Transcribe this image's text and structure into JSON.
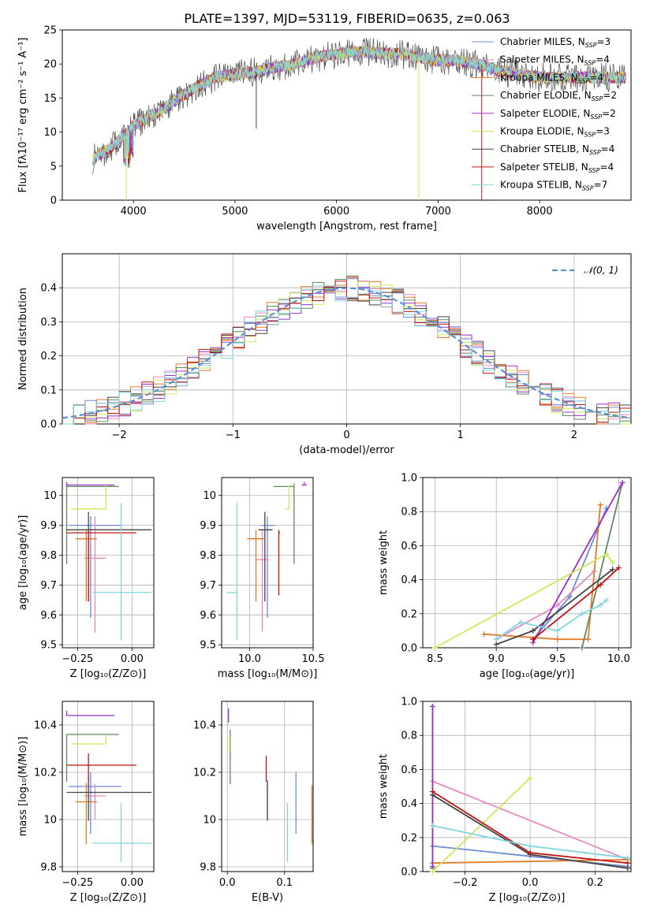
{
  "chart_data": [
    {
      "id": "spectrum",
      "type": "line",
      "title": "PLATE=1397, MJD=53119, FIBERID=0635, z=0.063",
      "xlabel": "wavelength [Angstrom, rest frame]",
      "ylabel": "Flux [fλ10⁻¹⁷ erg cm⁻² s⁻¹ A⁻¹]",
      "xlim": [
        3300,
        8900
      ],
      "ylim": [
        0,
        25
      ],
      "xticks": [
        4000,
        5000,
        6000,
        7000,
        8000
      ],
      "yticks": [
        0,
        5,
        10,
        15,
        20,
        25
      ],
      "grid": false,
      "legend_position": "lower-right",
      "continuum": {
        "x": [
          3600,
          3800,
          4000,
          4200,
          4400,
          4600,
          4800,
          5000,
          5200,
          5400,
          5600,
          5800,
          6000,
          6200,
          6400,
          6600,
          6800,
          7000,
          7200,
          7400,
          7600,
          7800,
          8000,
          8200,
          8400,
          8600,
          8800
        ],
        "y": [
          6,
          8,
          11,
          12.5,
          14.5,
          16.5,
          18,
          18.5,
          18.8,
          19.5,
          20,
          21,
          21.5,
          21.8,
          21.6,
          21.5,
          21,
          20.5,
          20.5,
          20,
          19,
          18.5,
          18,
          18,
          18,
          18,
          18
        ]
      },
      "series": [
        {
          "name": "Chabrier MILES, N_SSP=3",
          "color": "#6b8cd6"
        },
        {
          "name": "Salpeter MILES, N_SSP=4",
          "color": "#e68ac3"
        },
        {
          "name": "Kroupa MILES, N_SSP=4",
          "color": "#e07b28"
        },
        {
          "name": "Chabrier ELODIE, N_SSP=2",
          "color": "#5e8a5e"
        },
        {
          "name": "Salpeter ELODIE, N_SSP=2",
          "color": "#9b30c8"
        },
        {
          "name": "Kroupa ELODIE, N_SSP=3",
          "color": "#cde85a"
        },
        {
          "name": "Chabrier STELIB, N_SSP=4",
          "color": "#444444"
        },
        {
          "name": "Salpeter STELIB, N_SSP=4",
          "color": "#c01414"
        },
        {
          "name": "Kroupa STELIB, N_SSP=7",
          "color": "#7fd6de"
        }
      ],
      "legend": [
        {
          "main": "Chabrier MILES, N",
          "sub": "SSP",
          "tail": "=3"
        },
        {
          "main": "Salpeter MILES, N",
          "sub": "SSP",
          "tail": "=4"
        },
        {
          "main": "Kroupa MILES, N",
          "sub": "SSP",
          "tail": "=4"
        },
        {
          "main": "Chabrier ELODIE, N",
          "sub": "SSP",
          "tail": "=2"
        },
        {
          "main": "Salpeter ELODIE, N",
          "sub": "SSP",
          "tail": "=2"
        },
        {
          "main": "Kroupa ELODIE, N",
          "sub": "SSP",
          "tail": "=3"
        },
        {
          "main": "Chabrier STELIB, N",
          "sub": "SSP",
          "tail": "=4"
        },
        {
          "main": "Salpeter STELIB, N",
          "sub": "SSP",
          "tail": "=4"
        },
        {
          "main": "Kroupa STELIB, N",
          "sub": "SSP",
          "tail": "=7"
        }
      ]
    },
    {
      "id": "residuals",
      "type": "step",
      "xlabel": "(data-model)/error",
      "ylabel": "Normed distribution",
      "xlim": [
        -2.5,
        2.5
      ],
      "ylim": [
        0,
        0.5
      ],
      "xticks": [
        -2,
        -1,
        0,
        1,
        2
      ],
      "xticklabels": [
        "−2",
        "−1",
        "0",
        "1",
        "2"
      ],
      "yticks": [
        0.0,
        0.1,
        0.2,
        0.3,
        0.4
      ],
      "grid": true,
      "legend_position": "upper-right",
      "legend_label": "𝒩(0, 1)",
      "gaussian_color": "#5b8fd8",
      "bin_width": 0.1
    },
    {
      "id": "age-vs-Z",
      "type": "errorbar",
      "xlabel": "Z [log₁₀(Z/Z⊙)]",
      "ylabel": "age  [log₁₀(age/yr)]",
      "xlim": [
        -0.32,
        0.1
      ],
      "ylim": [
        9.49,
        10.06
      ],
      "xticks": [
        -0.25,
        0.0
      ],
      "xticklabels": [
        "−0.25",
        "0.00"
      ],
      "yticks": [
        9.5,
        9.6,
        9.7,
        9.8,
        9.9,
        10.0
      ],
      "grid": true,
      "points": [
        {
          "x": -0.19,
          "y": 9.9,
          "xerr": [
            0.1,
            0.14
          ],
          "yerr": [
            0.31,
            0.03
          ],
          "color": "#6b8cd6"
        },
        {
          "x": -0.17,
          "y": 9.79,
          "xerr": [
            0.05,
            0.05
          ],
          "yerr": [
            0.25,
            0.14
          ],
          "color": "#e68ac3"
        },
        {
          "x": -0.21,
          "y": 9.855,
          "xerr": [
            0.05,
            0.05
          ],
          "yerr": [
            0.21,
            0.03
          ],
          "color": "#e07b28"
        },
        {
          "x": -0.3,
          "y": 10.03,
          "xerr": [
            0.0,
            0.24
          ],
          "yerr": [
            0.26,
            0.01
          ],
          "color": "#5e8a5e"
        },
        {
          "x": -0.3,
          "y": 10.035,
          "xerr": [
            0.0,
            0.22
          ],
          "yerr": [
            0.0,
            0.01
          ],
          "color": "#9b30c8"
        },
        {
          "x": -0.12,
          "y": 9.955,
          "xerr": [
            0.16,
            0.0
          ],
          "yerr": [
            0.0,
            0.08
          ],
          "color": "#cde85a"
        },
        {
          "x": -0.2,
          "y": 9.885,
          "xerr": [
            0.1,
            0.29
          ],
          "yerr": [
            0.24,
            0.06
          ],
          "color": "#444444"
        },
        {
          "x": -0.2,
          "y": 9.875,
          "xerr": [
            0.1,
            0.22
          ],
          "yerr": [
            0.23,
            0.01
          ],
          "color": "#c01414"
        },
        {
          "x": -0.05,
          "y": 9.675,
          "xerr": [
            0.13,
            0.14
          ],
          "yerr": [
            0.16,
            0.3
          ],
          "color": "#7fd6de"
        }
      ]
    },
    {
      "id": "age-vs-mass",
      "type": "errorbar",
      "xlabel": "mass [log₁₀(M/M⊙)]",
      "ylabel": "",
      "xlim": [
        9.78,
        10.5
      ],
      "ylim": [
        9.49,
        10.06
      ],
      "xticks": [
        10.0,
        10.5
      ],
      "xticklabels": [
        "10.0",
        "10.5"
      ],
      "yticks": [
        9.5,
        9.6,
        9.7,
        9.8,
        9.9,
        10.0
      ],
      "grid": true,
      "points": [
        {
          "x": 10.14,
          "y": 9.9,
          "xerr": [
            0.05,
            0.06
          ],
          "yerr": [
            0.31,
            0.03
          ],
          "color": "#6b8cd6"
        },
        {
          "x": 10.1,
          "y": 9.785,
          "xerr": [
            0.05,
            0.05
          ],
          "yerr": [
            0.24,
            0.1
          ],
          "color": "#e68ac3"
        },
        {
          "x": 10.05,
          "y": 9.855,
          "xerr": [
            0.07,
            0.07
          ],
          "yerr": [
            0.21,
            0.03
          ],
          "color": "#e07b28"
        },
        {
          "x": 10.35,
          "y": 10.03,
          "xerr": [
            0.16,
            0.0
          ],
          "yerr": [
            0.26,
            0.01
          ],
          "color": "#5e8a5e"
        },
        {
          "x": 10.43,
          "y": 10.035,
          "xerr": [
            0.02,
            0.02
          ],
          "yerr": [
            0.0,
            0.01
          ],
          "color": "#9b30c8"
        },
        {
          "x": 10.31,
          "y": 9.955,
          "xerr": [
            0.03,
            0.0
          ],
          "yerr": [
            0.0,
            0.08
          ],
          "color": "#cde85a"
        },
        {
          "x": 10.12,
          "y": 9.885,
          "xerr": [
            0.05,
            0.06
          ],
          "yerr": [
            0.24,
            0.06
          ],
          "color": "#444444"
        },
        {
          "x": 10.23,
          "y": 9.875,
          "xerr": [
            0.0,
            0.01
          ],
          "yerr": [
            0.21,
            0.01
          ],
          "color": "#c01414"
        },
        {
          "x": 9.9,
          "y": 9.675,
          "xerr": [
            0.08,
            0.0
          ],
          "yerr": [
            0.16,
            0.3
          ],
          "color": "#7fd6de"
        }
      ]
    },
    {
      "id": "mass-weight-vs-age",
      "type": "line",
      "xlabel": "age  [log₁₀(age/yr)]",
      "ylabel": "mass weight",
      "xlim": [
        8.4,
        10.1
      ],
      "ylim": [
        0,
        1
      ],
      "xticks": [
        8.5,
        9.0,
        9.5,
        10.0
      ],
      "xticklabels": [
        "8.5",
        "9.0",
        "9.5",
        "10.0"
      ],
      "yticks": [
        0.0,
        0.2,
        0.4,
        0.6,
        0.8,
        1.0
      ],
      "grid": true,
      "series": [
        {
          "color": "#6b8cd6",
          "x": [
            9.3,
            9.6,
            9.9
          ],
          "y": [
            0.05,
            0.3,
            0.82
          ]
        },
        {
          "color": "#e68ac3",
          "x": [
            9.0,
            9.5,
            9.8
          ],
          "y": [
            0.05,
            0.25,
            0.45
          ]
        },
        {
          "color": "#e07b28",
          "x": [
            8.9,
            9.5,
            9.75,
            9.85
          ],
          "y": [
            0.08,
            0.05,
            0.05,
            0.84
          ]
        },
        {
          "color": "#5e8a5e",
          "x": [
            9.7,
            10.03
          ],
          "y": [
            0.0,
            0.97
          ]
        },
        {
          "color": "#9b30c8",
          "x": [
            9.3,
            10.03
          ],
          "y": [
            0.03,
            0.97
          ]
        },
        {
          "color": "#cde85a",
          "x": [
            8.5,
            9.9,
            9.95
          ],
          "y": [
            0.0,
            0.55,
            0.5
          ]
        },
        {
          "color": "#444444",
          "x": [
            9.0,
            9.3,
            9.95
          ],
          "y": [
            0.02,
            0.1,
            0.46
          ]
        },
        {
          "color": "#c01414",
          "x": [
            9.3,
            9.85,
            10.0
          ],
          "y": [
            0.05,
            0.37,
            0.47
          ]
        },
        {
          "color": "#7fd6de",
          "x": [
            9.0,
            9.2,
            9.5,
            9.7,
            9.85,
            9.9
          ],
          "y": [
            0.05,
            0.15,
            0.1,
            0.2,
            0.25,
            0.28
          ]
        }
      ]
    },
    {
      "id": "mass-vs-Z",
      "type": "errorbar",
      "xlabel": "Z [log₁₀(Z/Z⊙)]",
      "ylabel": "mass [log₁₀(M/M⊙)]",
      "xlim": [
        -0.32,
        0.1
      ],
      "ylim": [
        9.78,
        10.5
      ],
      "xticks": [
        -0.25,
        0.0
      ],
      "xticklabels": [
        "−0.25",
        "0.00"
      ],
      "yticks": [
        9.8,
        10.0,
        10.2,
        10.4
      ],
      "grid": true,
      "points": [
        {
          "x": -0.19,
          "y": 10.14,
          "xerr": [
            0.1,
            0.14
          ],
          "yerr": [
            0.2,
            0.06
          ],
          "color": "#6b8cd6"
        },
        {
          "x": -0.17,
          "y": 10.1,
          "xerr": [
            0.05,
            0.05
          ],
          "yerr": [
            0.1,
            0.05
          ],
          "color": "#e68ac3"
        },
        {
          "x": -0.21,
          "y": 10.075,
          "xerr": [
            0.05,
            0.05
          ],
          "yerr": [
            0.18,
            0.08
          ],
          "color": "#e07b28"
        },
        {
          "x": -0.3,
          "y": 10.36,
          "xerr": [
            0.0,
            0.24
          ],
          "yerr": [
            0.2,
            0.0
          ],
          "color": "#5e8a5e"
        },
        {
          "x": -0.3,
          "y": 10.44,
          "xerr": [
            0.0,
            0.22
          ],
          "yerr": [
            0.0,
            0.02
          ],
          "color": "#9b30c8"
        },
        {
          "x": -0.12,
          "y": 10.32,
          "xerr": [
            0.16,
            0.0
          ],
          "yerr": [
            0.0,
            0.04
          ],
          "color": "#cde85a"
        },
        {
          "x": -0.2,
          "y": 10.115,
          "xerr": [
            0.1,
            0.29
          ],
          "yerr": [
            0.12,
            0.06
          ],
          "color": "#444444"
        },
        {
          "x": -0.2,
          "y": 10.23,
          "xerr": [
            0.1,
            0.22
          ],
          "yerr": [
            0.07,
            0.05
          ],
          "color": "#c01414"
        },
        {
          "x": -0.05,
          "y": 9.9,
          "xerr": [
            0.13,
            0.14
          ],
          "yerr": [
            0.08,
            0.17
          ],
          "color": "#7fd6de"
        }
      ]
    },
    {
      "id": "mass-vs-EBV",
      "type": "errorbar",
      "xlabel": "E(B-V)",
      "ylabel": "",
      "xlim": [
        -0.01,
        0.15
      ],
      "ylim": [
        9.78,
        10.5
      ],
      "xticks": [
        0.0,
        0.1
      ],
      "xticklabels": [
        "0.0",
        "0.1"
      ],
      "yticks": [
        9.8,
        10.0,
        10.2,
        10.4
      ],
      "grid": true,
      "points": [
        {
          "x": 0.12,
          "y": 10.14,
          "yerr": [
            0.2,
            0.06
          ],
          "color": "#6b8cd6"
        },
        {
          "x": 0.07,
          "y": 10.1,
          "yerr": [
            0.1,
            0.05
          ],
          "color": "#e68ac3"
        },
        {
          "x": 0.148,
          "y": 10.075,
          "yerr": [
            0.18,
            0.07
          ],
          "color": "#e07b28"
        },
        {
          "x": 0.005,
          "y": 10.3,
          "yerr": [
            0.15,
            0.08
          ],
          "color": "#5e8a5e"
        },
        {
          "x": 0.002,
          "y": 10.44,
          "yerr": [
            0.03,
            0.03
          ],
          "color": "#9b30c8"
        },
        {
          "x": 0.004,
          "y": 10.32,
          "yerr": [
            0.03,
            0.03
          ],
          "color": "#cde85a"
        },
        {
          "x": 0.07,
          "y": 10.115,
          "yerr": [
            0.12,
            0.05
          ],
          "color": "#444444"
        },
        {
          "x": 0.068,
          "y": 10.23,
          "yerr": [
            0.07,
            0.04
          ],
          "color": "#c01414"
        },
        {
          "x": 0.105,
          "y": 9.9,
          "yerr": [
            0.08,
            0.17
          ],
          "color": "#7fd6de"
        }
      ]
    },
    {
      "id": "mass-weight-vs-Z",
      "type": "line",
      "xlabel": "Z [log₁₀(Z/Z⊙)]",
      "ylabel": "mass weight",
      "xlim": [
        -0.33,
        0.31
      ],
      "ylim": [
        0,
        1
      ],
      "xticks": [
        -0.2,
        0.0,
        0.2
      ],
      "xticklabels": [
        "−0.2",
        "0.0",
        "0.2"
      ],
      "yticks": [
        0.0,
        0.2,
        0.4,
        0.6,
        0.8,
        1.0
      ],
      "grid": true,
      "series": [
        {
          "color": "#6b8cd6",
          "x": [
            -0.3,
            0.3
          ],
          "y": [
            0.15,
            0.03
          ]
        },
        {
          "color": "#e68ac3",
          "x": [
            -0.3,
            0.3
          ],
          "y": [
            0.53,
            0.07
          ]
        },
        {
          "color": "#e07b28",
          "x": [
            -0.3,
            0.3
          ],
          "y": [
            0.05,
            0.07
          ]
        },
        {
          "color": "#5e8a5e",
          "x": [
            -0.3,
            -0.3
          ],
          "y": [
            0.02,
            0.97
          ]
        },
        {
          "color": "#9b30c8",
          "x": [
            -0.3,
            -0.3
          ],
          "y": [
            0.03,
            0.97
          ]
        },
        {
          "color": "#cde85a",
          "x": [
            -0.3,
            0.0
          ],
          "y": [
            0.0,
            0.55
          ]
        },
        {
          "color": "#444444",
          "x": [
            -0.3,
            0.0,
            0.3
          ],
          "y": [
            0.45,
            0.1,
            0.02
          ]
        },
        {
          "color": "#c01414",
          "x": [
            -0.3,
            0.0,
            0.3
          ],
          "y": [
            0.47,
            0.11,
            0.05
          ]
        },
        {
          "color": "#7fd6de",
          "x": [
            -0.3,
            0.0,
            0.3
          ],
          "y": [
            0.27,
            0.15,
            0.08
          ]
        }
      ]
    }
  ]
}
